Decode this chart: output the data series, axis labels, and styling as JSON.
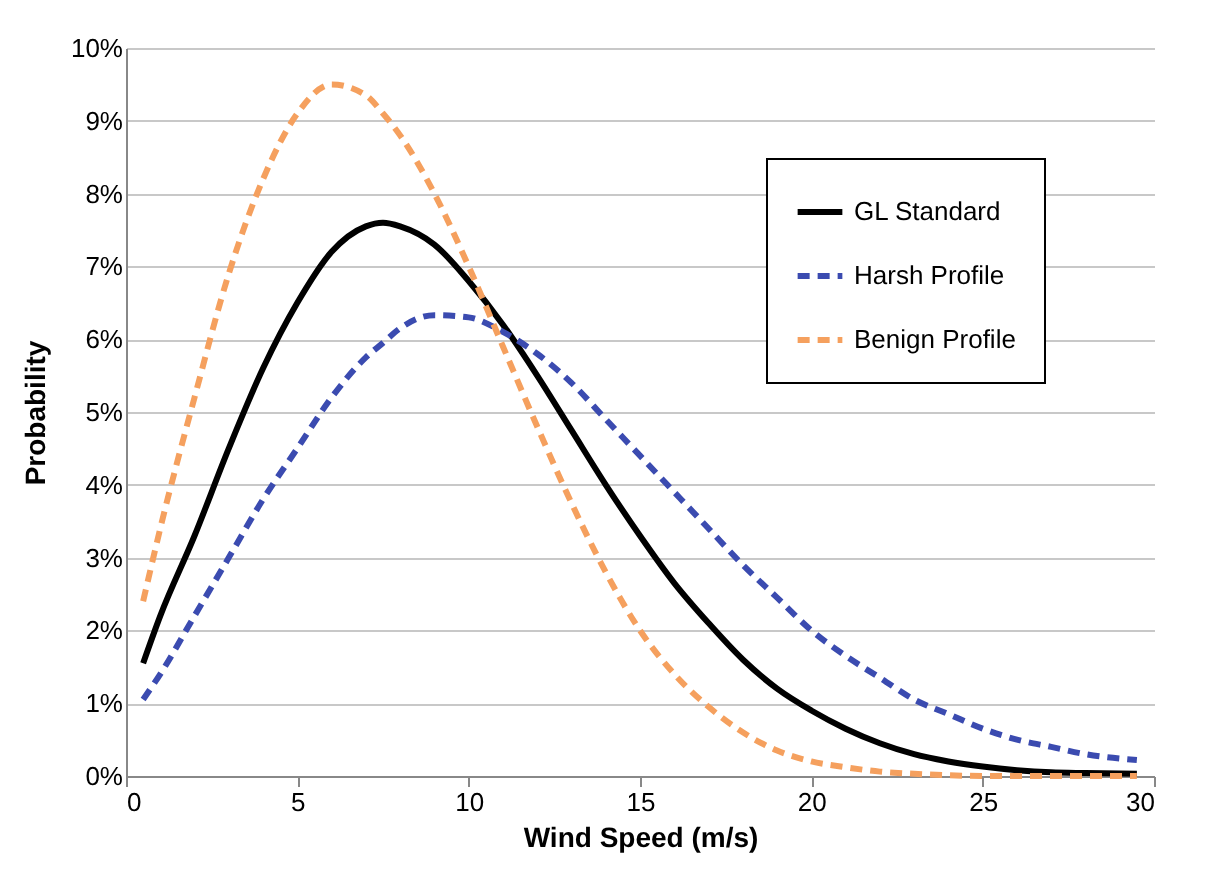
{
  "chart_data": {
    "type": "line",
    "xlabel": "Wind Speed (m/s)",
    "ylabel": "Probability",
    "x": [
      0.5,
      1,
      2,
      3,
      4,
      5,
      6,
      7,
      7.5,
      8,
      9,
      10,
      11,
      12,
      13,
      14,
      15,
      16,
      17,
      18,
      19,
      20,
      21,
      22,
      23,
      24,
      25,
      26,
      27,
      28,
      29.5
    ],
    "series": [
      {
        "name": "GL Standard",
        "color": "#000000",
        "line_style": "solid",
        "values": [
          1.55,
          2.2,
          3.3,
          4.5,
          5.6,
          6.5,
          7.2,
          7.55,
          7.6,
          7.55,
          7.3,
          6.8,
          6.2,
          5.5,
          4.75,
          4.0,
          3.3,
          2.65,
          2.1,
          1.6,
          1.2,
          0.9,
          0.65,
          0.45,
          0.3,
          0.2,
          0.13,
          0.08,
          0.05,
          0.04,
          0.03
        ]
      },
      {
        "name": "Harsh Profile",
        "color": "#3b4bb0",
        "line_style": "dashed",
        "values": [
          1.05,
          1.4,
          2.2,
          3.0,
          3.8,
          4.5,
          5.2,
          5.75,
          5.95,
          6.15,
          6.33,
          6.3,
          6.1,
          5.8,
          5.4,
          4.9,
          4.4,
          3.9,
          3.4,
          2.9,
          2.45,
          2.0,
          1.65,
          1.35,
          1.05,
          0.85,
          0.65,
          0.5,
          0.4,
          0.3,
          0.22
        ]
      },
      {
        "name": "Benign Profile",
        "color": "#f5a05e",
        "line_style": "dashed",
        "values": [
          2.4,
          3.4,
          5.2,
          6.9,
          8.2,
          9.1,
          9.5,
          9.35,
          9.1,
          8.8,
          8.0,
          7.0,
          5.9,
          4.8,
          3.75,
          2.8,
          2.0,
          1.4,
          0.95,
          0.6,
          0.35,
          0.2,
          0.12,
          0.06,
          0.03,
          0.01,
          0,
          0,
          0,
          0,
          0
        ]
      }
    ],
    "xlim": [
      0,
      30
    ],
    "xticks": [
      0,
      5,
      10,
      15,
      20,
      25,
      30
    ],
    "ylim": [
      0,
      10
    ],
    "yticks": [
      {
        "value": 0,
        "label": "0%"
      },
      {
        "value": 1,
        "label": "1%"
      },
      {
        "value": 2,
        "label": "2%"
      },
      {
        "value": 3,
        "label": "3%"
      },
      {
        "value": 4,
        "label": "4%"
      },
      {
        "value": 5,
        "label": "5%"
      },
      {
        "value": 6,
        "label": "6%"
      },
      {
        "value": 7,
        "label": "7%"
      },
      {
        "value": 8,
        "label": "8%"
      },
      {
        "value": 9,
        "label": "9%"
      },
      {
        "value": 10,
        "label": "10%"
      }
    ],
    "grid": "y",
    "legend": "top right",
    "marker": "none"
  }
}
